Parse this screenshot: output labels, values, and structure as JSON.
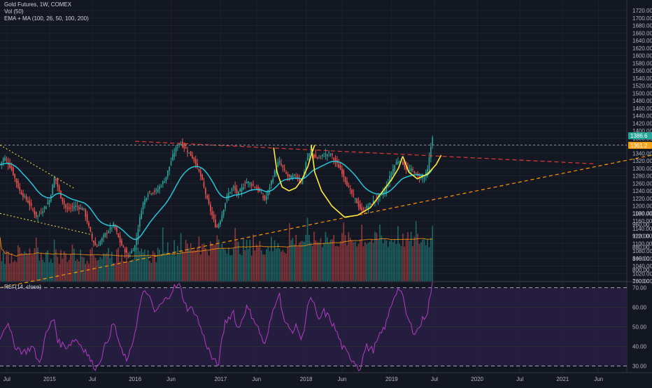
{
  "header": {
    "symbol_line": "Gold Futures, 1W, COMEX",
    "vol_line": "Vol (50)",
    "ma_line": "EMA + MA (100, 26, 50, 100, 200)"
  },
  "rsi_legend": "RSI (14, close)",
  "colors": {
    "background": "#131722",
    "up": "#26a69a",
    "down": "#ef5350",
    "ema": "#26c6da",
    "vol_ma": "#ff9800",
    "rsi_line": "#b23cc4",
    "rsi_band": "#2a1f45",
    "trend_orange": "#ff9800",
    "trend_red": "#e53935",
    "trend_yellow": "#ffeb3b",
    "price_tag_green": "#26a69a",
    "price_tag_orange": "#f7a21b"
  },
  "price_tags": {
    "current": "1386.6",
    "level": "1361.2"
  },
  "chart_data": [
    {
      "type": "candlestick",
      "title": "Gold Futures, 1W, COMEX",
      "ylim": [
        1000,
        1720
      ],
      "y_ticks": [
        "1720.00",
        "1700.00",
        "1680.00",
        "1660.00",
        "1640.00",
        "1620.00",
        "1600.00",
        "1580.00",
        "1560.00",
        "1540.00",
        "1520.00",
        "1500.00",
        "1480.00",
        "1460.00",
        "1440.00",
        "1420.00",
        "1400.00",
        "1380.00",
        "1360.00",
        "1340.00",
        "1320.00",
        "1300.00",
        "1280.00",
        "1260.00",
        "1240.00",
        "1220.00",
        "1200.00",
        "1180.00",
        "1160.00",
        "1140.00",
        "1120.00",
        "1100.00",
        "1080.00",
        "1060.00",
        "1040.00",
        "1020.00",
        "1000.00"
      ],
      "x_ticks": [
        "Jul",
        "2015",
        "Jul",
        "2016",
        "Jun",
        "2017",
        "Jun",
        "2018",
        "Jun",
        "2019",
        "Jul",
        "2020",
        "Jul",
        "2021",
        "Jun"
      ],
      "x_tick_positions": [
        2014.5,
        2015.0,
        2015.5,
        2016.0,
        2016.42,
        2017.0,
        2017.42,
        2018.0,
        2018.42,
        2019.0,
        2019.5,
        2020.0,
        2020.5,
        2021.0,
        2021.42
      ],
      "x_range": [
        2014.42,
        2021.75
      ],
      "price_path": [
        [
          2014.42,
          1310
        ],
        [
          2014.47,
          1330
        ],
        [
          2014.55,
          1300
        ],
        [
          2014.65,
          1240
        ],
        [
          2014.75,
          1210
        ],
        [
          2014.85,
          1170
        ],
        [
          2014.92,
          1190
        ],
        [
          2015.0,
          1215
        ],
        [
          2015.06,
          1280
        ],
        [
          2015.12,
          1230
        ],
        [
          2015.2,
          1190
        ],
        [
          2015.3,
          1200
        ],
        [
          2015.4,
          1190
        ],
        [
          2015.5,
          1110
        ],
        [
          2015.55,
          1090
        ],
        [
          2015.65,
          1125
        ],
        [
          2015.75,
          1150
        ],
        [
          2015.83,
          1100
        ],
        [
          2015.92,
          1065
        ],
        [
          2016.0,
          1095
        ],
        [
          2016.08,
          1200
        ],
        [
          2016.15,
          1235
        ],
        [
          2016.25,
          1240
        ],
        [
          2016.35,
          1270
        ],
        [
          2016.45,
          1340
        ],
        [
          2016.52,
          1370
        ],
        [
          2016.6,
          1350
        ],
        [
          2016.7,
          1320
        ],
        [
          2016.78,
          1270
        ],
        [
          2016.85,
          1210
        ],
        [
          2016.95,
          1140
        ],
        [
          2017.0,
          1165
        ],
        [
          2017.08,
          1230
        ],
        [
          2017.15,
          1250
        ],
        [
          2017.2,
          1230
        ],
        [
          2017.3,
          1265
        ],
        [
          2017.38,
          1255
        ],
        [
          2017.45,
          1240
        ],
        [
          2017.52,
          1215
        ],
        [
          2017.6,
          1270
        ],
        [
          2017.68,
          1320
        ],
        [
          2017.75,
          1290
        ],
        [
          2017.8,
          1275
        ],
        [
          2017.88,
          1280
        ],
        [
          2017.95,
          1260
        ],
        [
          2018.0,
          1320
        ],
        [
          2018.05,
          1345
        ],
        [
          2018.12,
          1325
        ],
        [
          2018.2,
          1335
        ],
        [
          2018.28,
          1340
        ],
        [
          2018.35,
          1315
        ],
        [
          2018.42,
          1290
        ],
        [
          2018.5,
          1245
        ],
        [
          2018.58,
          1215
        ],
        [
          2018.65,
          1185
        ],
        [
          2018.7,
          1195
        ],
        [
          2018.78,
          1210
        ],
        [
          2018.85,
          1225
        ],
        [
          2018.92,
          1240
        ],
        [
          2019.0,
          1290
        ],
        [
          2019.05,
          1315
        ],
        [
          2019.1,
          1325
        ],
        [
          2019.18,
          1295
        ],
        [
          2019.25,
          1295
        ],
        [
          2019.3,
          1280
        ],
        [
          2019.38,
          1275
        ],
        [
          2019.42,
          1295
        ],
        [
          2019.45,
          1345
        ],
        [
          2019.48,
          1390
        ]
      ],
      "series": [
        {
          "name": "EMA + MA (100, 26, 50, 100, 200)"
        }
      ]
    },
    {
      "type": "bar",
      "title": "Vol (50)",
      "ylim": [
        760,
        1000
      ],
      "y_ticks": [
        "1000.00",
        "960.00",
        "920.00",
        "880.00",
        "840.00",
        "800.00",
        "760.00"
      ]
    },
    {
      "type": "line",
      "title": "RSI (14, close)",
      "ylim": [
        27,
        73
      ],
      "y_ticks": [
        "70.00",
        "60.00",
        "50.00",
        "40.00",
        "30.00"
      ],
      "bands": [
        30,
        70
      ],
      "values_path": [
        [
          2014.42,
          45
        ],
        [
          2014.5,
          52
        ],
        [
          2014.6,
          40
        ],
        [
          2014.7,
          37
        ],
        [
          2014.8,
          40
        ],
        [
          2014.88,
          31
        ],
        [
          2014.95,
          45
        ],
        [
          2015.05,
          55
        ],
        [
          2015.1,
          42
        ],
        [
          2015.2,
          40
        ],
        [
          2015.3,
          44
        ],
        [
          2015.42,
          38
        ],
        [
          2015.5,
          31
        ],
        [
          2015.55,
          29
        ],
        [
          2015.65,
          40
        ],
        [
          2015.75,
          52
        ],
        [
          2015.85,
          36
        ],
        [
          2015.92,
          33
        ],
        [
          2016.0,
          48
        ],
        [
          2016.08,
          66
        ],
        [
          2016.15,
          68
        ],
        [
          2016.22,
          57
        ],
        [
          2016.3,
          61
        ],
        [
          2016.38,
          65
        ],
        [
          2016.45,
          70
        ],
        [
          2016.52,
          71
        ],
        [
          2016.6,
          60
        ],
        [
          2016.7,
          58
        ],
        [
          2016.8,
          45
        ],
        [
          2016.9,
          34
        ],
        [
          2016.97,
          30
        ],
        [
          2017.05,
          52
        ],
        [
          2017.15,
          58
        ],
        [
          2017.2,
          48
        ],
        [
          2017.3,
          60
        ],
        [
          2017.38,
          55
        ],
        [
          2017.45,
          48
        ],
        [
          2017.52,
          40
        ],
        [
          2017.62,
          60
        ],
        [
          2017.68,
          68
        ],
        [
          2017.75,
          52
        ],
        [
          2017.82,
          48
        ],
        [
          2017.9,
          50
        ],
        [
          2017.95,
          42
        ],
        [
          2018.02,
          62
        ],
        [
          2018.08,
          64
        ],
        [
          2018.14,
          52
        ],
        [
          2018.2,
          58
        ],
        [
          2018.28,
          54
        ],
        [
          2018.35,
          48
        ],
        [
          2018.42,
          40
        ],
        [
          2018.5,
          35
        ],
        [
          2018.58,
          32
        ],
        [
          2018.62,
          28
        ],
        [
          2018.7,
          40
        ],
        [
          2018.78,
          38
        ],
        [
          2018.86,
          45
        ],
        [
          2018.94,
          52
        ],
        [
          2019.0,
          62
        ],
        [
          2019.05,
          68
        ],
        [
          2019.1,
          70
        ],
        [
          2019.18,
          55
        ],
        [
          2019.25,
          48
        ],
        [
          2019.3,
          48
        ],
        [
          2019.38,
          55
        ],
        [
          2019.42,
          58
        ],
        [
          2019.45,
          66
        ],
        [
          2019.48,
          73
        ]
      ]
    }
  ]
}
